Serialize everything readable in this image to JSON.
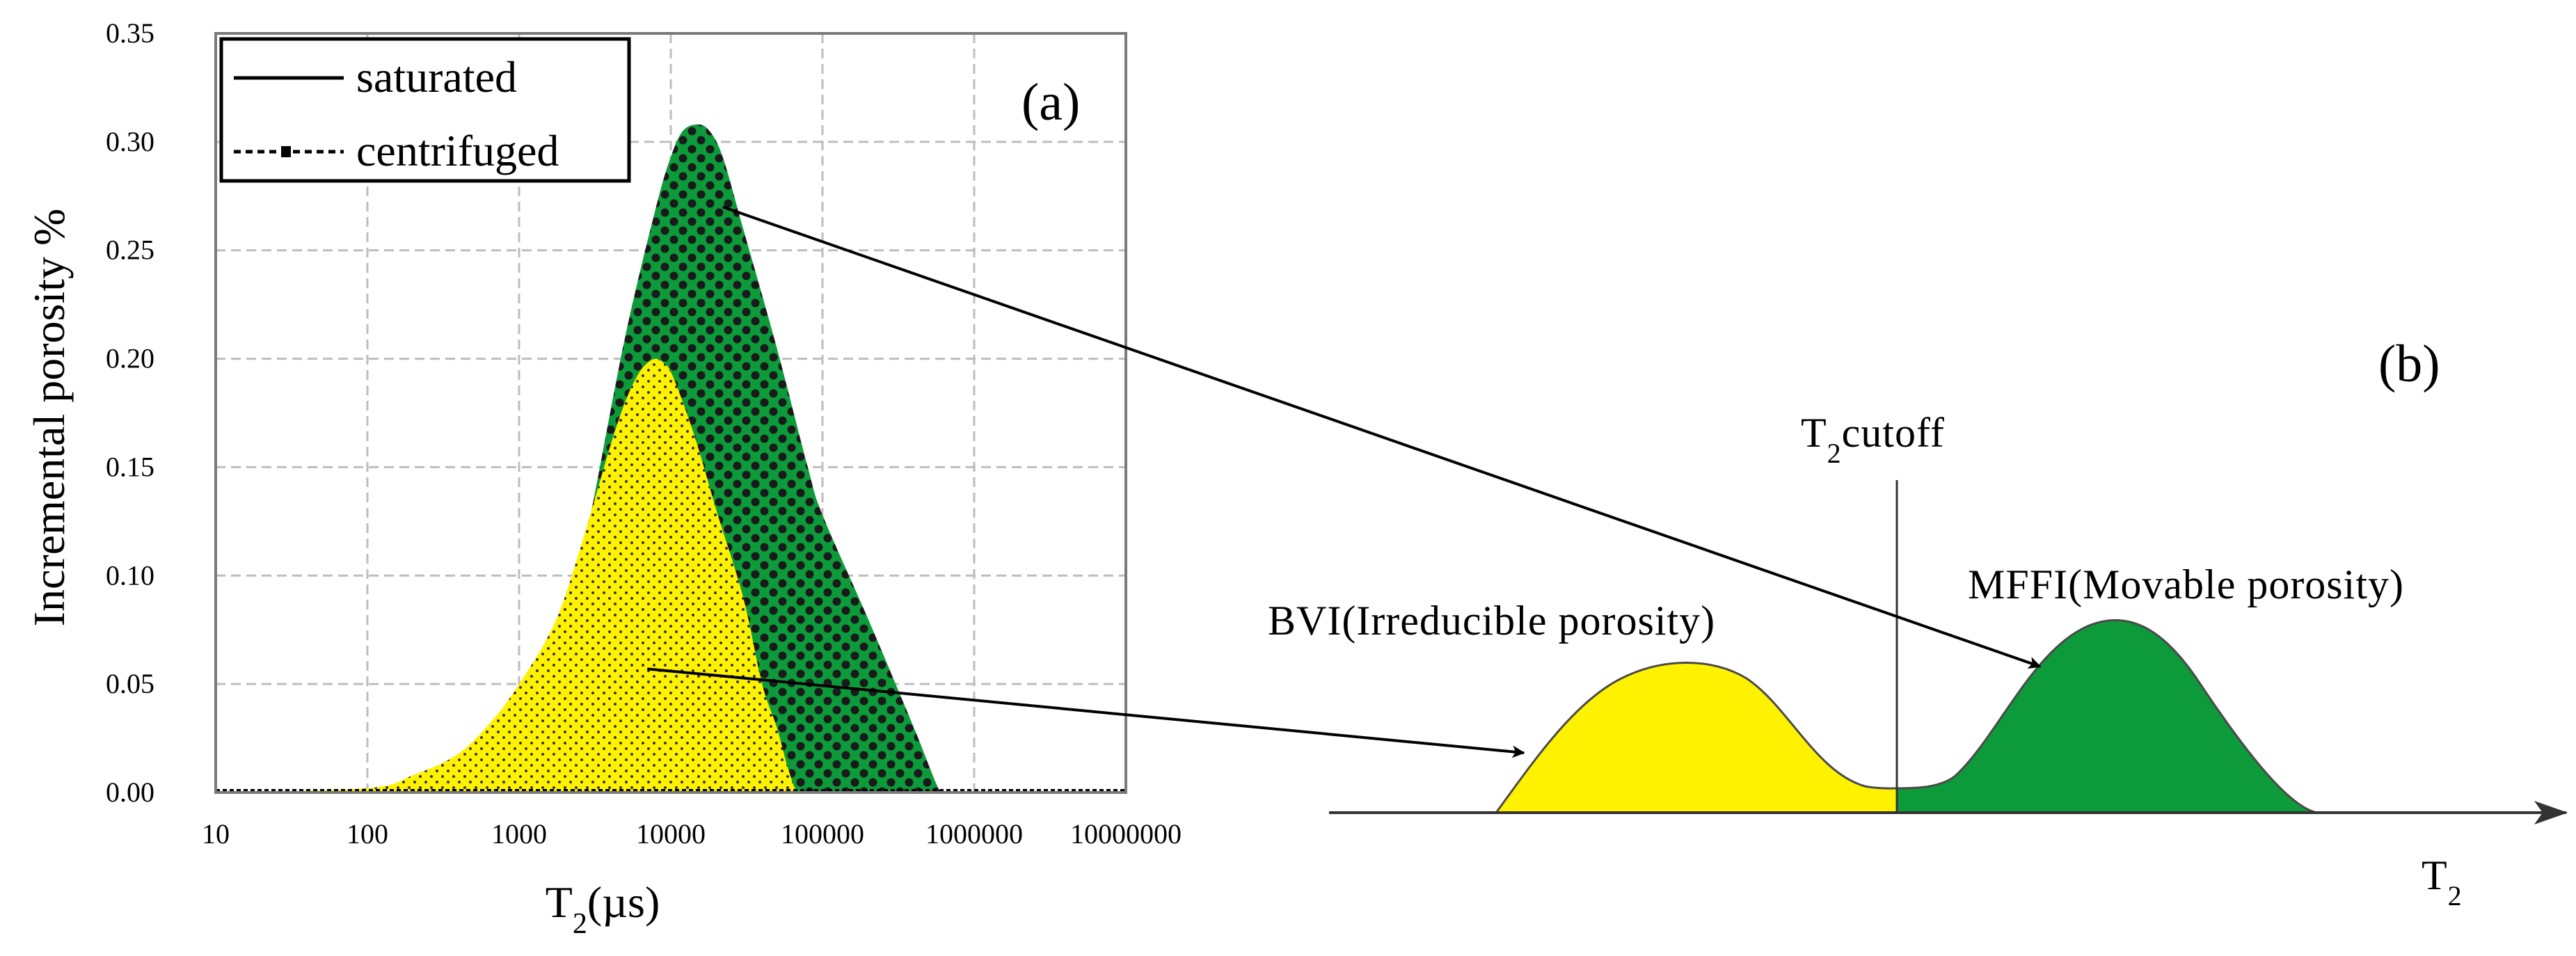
{
  "colors": {
    "saturated_fill": "#0d9a3a",
    "saturated_dots": "#1a1a1a",
    "centrifuged_fill": "#fff200",
    "centrifuged_dots": "#333333",
    "grid": "#bdbdbd"
  },
  "chart_data": [
    {
      "type": "area",
      "panel_label": "(a)",
      "xlabel": "T2(µs)",
      "ylabel": "Incremental  porosity %",
      "xscale": "log",
      "xlim": [
        10,
        10000000
      ],
      "ylim": [
        0,
        0.35
      ],
      "grid": true,
      "legend": {
        "placement": "top-left",
        "entries": [
          "saturated",
          "centrifuged"
        ]
      },
      "x_ticks": [
        "10",
        "100",
        "1000",
        "10000",
        "100000",
        "1000000",
        "10000000"
      ],
      "y_ticks": [
        "0.00",
        "0.05",
        "0.10",
        "0.15",
        "0.20",
        "0.25",
        "0.30",
        "0.35"
      ],
      "series": [
        {
          "name": "saturated",
          "x": [
            10,
            100,
            300,
            1000,
            2000,
            3000,
            5000,
            8000,
            10000,
            12000,
            15000,
            18000,
            22000,
            30000,
            50000,
            80000,
            100000,
            200000,
            400000,
            600000,
            700000,
            1000000,
            3000000,
            10000000
          ],
          "y": [
            0,
            0,
            0,
            0.02,
            0.07,
            0.13,
            0.21,
            0.27,
            0.293,
            0.305,
            0.308,
            0.305,
            0.293,
            0.26,
            0.205,
            0.15,
            0.128,
            0.08,
            0.03,
            0.0,
            0,
            0,
            0,
            0
          ]
        },
        {
          "name": "centrifuged",
          "x": [
            10,
            100,
            200,
            400,
            700,
            1000,
            1500,
            2000,
            3000,
            4000,
            5000,
            6000,
            7000,
            8000,
            9000,
            10000,
            12000,
            15000,
            20000,
            30000,
            40000,
            50000,
            60000,
            70000,
            100000,
            1000000,
            10000000
          ],
          "y": [
            0,
            0.002,
            0.008,
            0.018,
            0.035,
            0.05,
            0.07,
            0.09,
            0.13,
            0.16,
            0.18,
            0.192,
            0.198,
            0.2,
            0.198,
            0.194,
            0.18,
            0.16,
            0.13,
            0.09,
            0.05,
            0.03,
            0.01,
            0.0,
            0,
            0,
            0
          ]
        }
      ]
    },
    {
      "type": "area",
      "panel_label": "(b)",
      "xlabel": "T2",
      "cutoff_label": "T2cutoff",
      "regions": [
        {
          "name": "BVI(Irreducible porosity)",
          "color": "#fff200"
        },
        {
          "name": "MFFI(Movable porosity)",
          "color": "#0d9a3a"
        }
      ]
    }
  ]
}
